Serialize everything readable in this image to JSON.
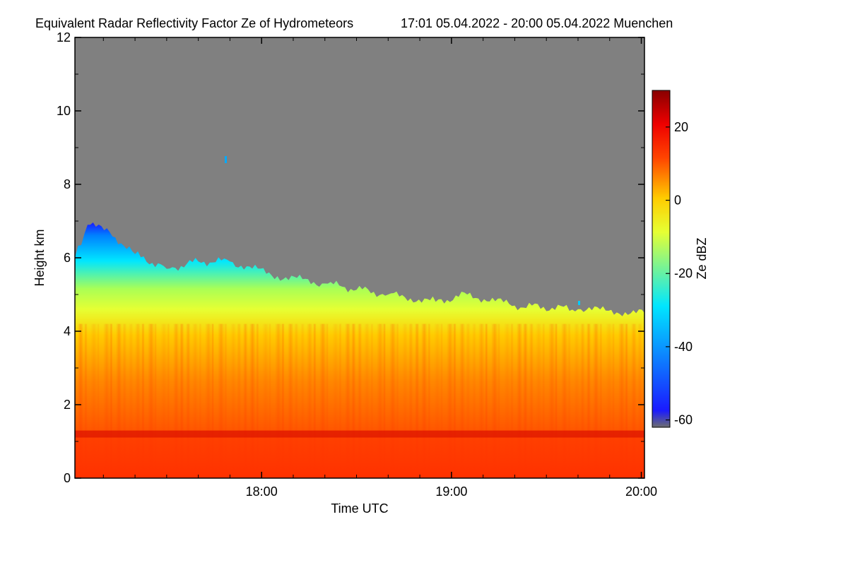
{
  "chart_data": {
    "type": "heatmap",
    "title": "Equivalent Radar Reflectivity Factor Ze of Hydrometeors",
    "subtitle": "17:01 05.04.2022 - 20:00 05.04.2022 Muenchen",
    "xlabel": "Time UTC",
    "ylabel": "Height km",
    "x_range": [
      "17:01",
      "20:01"
    ],
    "ylim": [
      0,
      12
    ],
    "x_ticks": [
      "18:00",
      "19:00",
      "20:00"
    ],
    "y_ticks": [
      "0",
      "2",
      "4",
      "6",
      "8",
      "10",
      "12"
    ],
    "colorbar": {
      "label": "Ze dBZ",
      "range": [
        -62,
        30
      ],
      "ticks": [
        "20",
        "0",
        "-20",
        "-40",
        "-60"
      ],
      "stops": [
        "#6e6e6e",
        "#1a1aff",
        "#00e6ff",
        "#e6ff33",
        "#ffcc00",
        "#ff4400",
        "#ee0000",
        "#880000"
      ]
    },
    "no_signal_color": "#808080",
    "echo_top_km": [
      {
        "t": "17:01",
        "h": 6.0
      },
      {
        "t": "17:05",
        "h": 6.9
      },
      {
        "t": "17:12",
        "h": 6.7
      },
      {
        "t": "17:20",
        "h": 6.1
      },
      {
        "t": "17:30",
        "h": 5.7
      },
      {
        "t": "17:40",
        "h": 5.9
      },
      {
        "t": "17:50",
        "h": 5.9
      },
      {
        "t": "18:05",
        "h": 5.5
      },
      {
        "t": "18:20",
        "h": 5.3
      },
      {
        "t": "18:40",
        "h": 5.0
      },
      {
        "t": "18:55",
        "h": 4.8
      },
      {
        "t": "19:05",
        "h": 5.0
      },
      {
        "t": "19:20",
        "h": 4.7
      },
      {
        "t": "19:40",
        "h": 4.6
      },
      {
        "t": "20:01",
        "h": 4.5
      }
    ],
    "melting_layer_km": 1.2
  }
}
